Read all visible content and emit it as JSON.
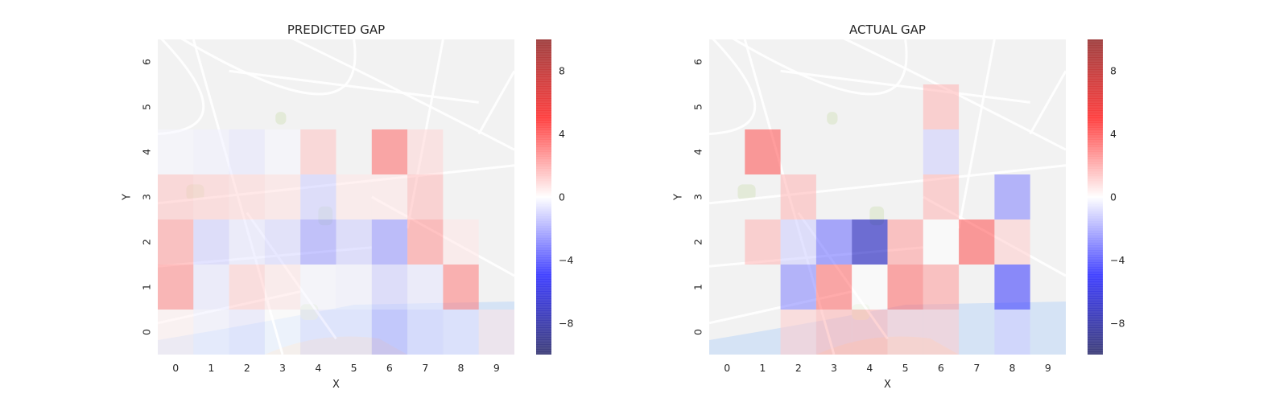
{
  "chart_data": [
    {
      "type": "heatmap",
      "title": "PREDICTED GAP",
      "xlabel": "X",
      "ylabel": "Y",
      "x_ticks": [
        "0",
        "1",
        "2",
        "3",
        "4",
        "5",
        "6",
        "7",
        "8",
        "9"
      ],
      "y_ticks": [
        "0",
        "1",
        "2",
        "3",
        "4",
        "5",
        "6"
      ],
      "colormap": "seismic",
      "vmin": -10,
      "vmax": 10,
      "colorbar_ticks": [
        8,
        4,
        0,
        -4,
        -8
      ],
      "colorbar_tick_labels": [
        "8",
        "4",
        "0",
        "−4",
        "−8"
      ],
      "background": "street map of Porto (faded)",
      "values": [
        [
          0.3,
          -0.3,
          -0.5,
          0,
          -0.5,
          -0.5,
          -1.5,
          -0.8,
          -0.6,
          0.5
        ],
        [
          2.4,
          -0.5,
          1.0,
          0.5,
          -0.2,
          -0.3,
          -1.0,
          -0.5,
          2.6,
          null
        ],
        [
          2.0,
          -1.0,
          -0.5,
          -0.8,
          -2.0,
          -1.0,
          -2.2,
          2.2,
          0.5,
          null
        ],
        [
          1.2,
          1.0,
          0.8,
          0.6,
          -1.0,
          0.5,
          0.5,
          1.4,
          null,
          null
        ],
        [
          -0.2,
          -0.3,
          -0.5,
          -0.2,
          1.2,
          null,
          3.0,
          0.8,
          null,
          null
        ],
        [
          null,
          null,
          null,
          null,
          null,
          null,
          null,
          null,
          null,
          null
        ],
        [
          null,
          null,
          null,
          null,
          null,
          null,
          null,
          null,
          null,
          null
        ]
      ]
    },
    {
      "type": "heatmap",
      "title": "ACTUAL GAP",
      "xlabel": "X",
      "ylabel": "Y",
      "x_ticks": [
        "0",
        "1",
        "2",
        "3",
        "4",
        "5",
        "6",
        "7",
        "8",
        "9"
      ],
      "y_ticks": [
        "0",
        "1",
        "2",
        "3",
        "4",
        "5",
        "6"
      ],
      "colormap": "seismic",
      "vmin": -10,
      "vmax": 10,
      "colorbar_ticks": [
        8,
        4,
        0,
        -4,
        -8
      ],
      "colorbar_tick_labels": [
        "8",
        "4",
        "0",
        "−4",
        "−8"
      ],
      "background": "street map of Porto (faded)",
      "values": [
        [
          null,
          null,
          1.0,
          1.5,
          1.5,
          1.0,
          1.0,
          null,
          -1.0,
          null
        ],
        [
          null,
          null,
          -2.5,
          3.0,
          0,
          3.0,
          2.0,
          null,
          -4.0,
          null
        ],
        [
          null,
          1.5,
          -1.0,
          -3.0,
          -7.0,
          2.0,
          0,
          3.5,
          1.0,
          null
        ],
        [
          null,
          null,
          1.5,
          null,
          null,
          null,
          1.5,
          null,
          -2.5,
          null
        ],
        [
          null,
          3.5,
          null,
          null,
          null,
          null,
          -1.0,
          null,
          null,
          null
        ],
        [
          null,
          null,
          null,
          null,
          null,
          null,
          1.5,
          null,
          null,
          null
        ],
        [
          null,
          null,
          null,
          null,
          null,
          null,
          null,
          null,
          null,
          null
        ]
      ]
    }
  ]
}
